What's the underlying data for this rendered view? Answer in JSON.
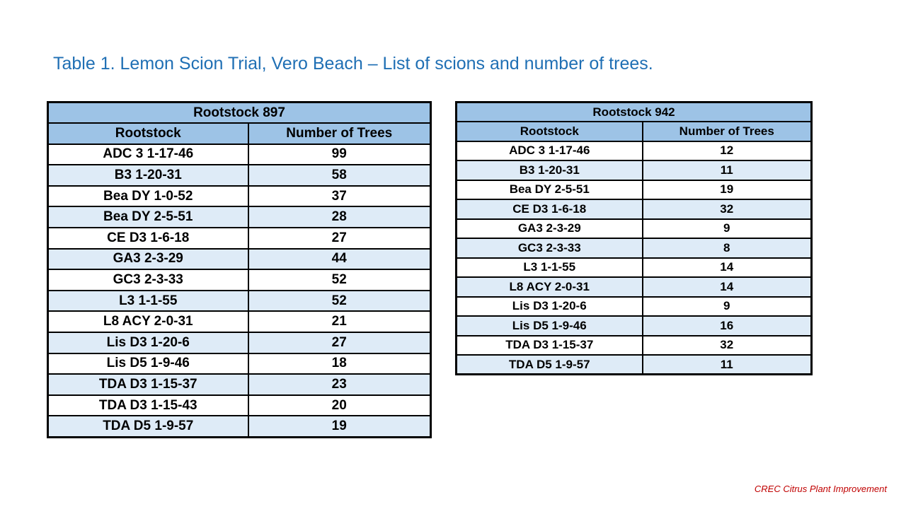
{
  "title": "Table 1. Lemon Scion Trial, Vero Beach – List of scions and number of trees.",
  "colors": {
    "header": "#9dc3e6",
    "alt_row": "#deebf7",
    "title": "#1f6fb4",
    "footer": "#c00000"
  },
  "tables": [
    {
      "caption": "Rootstock 897",
      "col_headers": [
        "Rootstock",
        "Number of Trees"
      ],
      "rows": [
        [
          "ADC 3 1-17-46",
          "99"
        ],
        [
          "B3 1-20-31",
          "58"
        ],
        [
          "Bea DY 1-0-52",
          "37"
        ],
        [
          "Bea DY 2-5-51",
          "28"
        ],
        [
          "CE D3 1-6-18",
          "27"
        ],
        [
          "GA3 2-3-29",
          "44"
        ],
        [
          "GC3 2-3-33",
          "52"
        ],
        [
          "L3 1-1-55",
          "52"
        ],
        [
          "L8 ACY 2-0-31",
          "21"
        ],
        [
          "Lis D3 1-20-6",
          "27"
        ],
        [
          "Lis D5 1-9-46",
          "18"
        ],
        [
          "TDA D3 1-15-37",
          "23"
        ],
        [
          "TDA D3 1-15-43",
          "20"
        ],
        [
          "TDA D5 1-9-57",
          "19"
        ]
      ]
    },
    {
      "caption": "Rootstock 942",
      "col_headers": [
        "Rootstock",
        "Number of Trees"
      ],
      "rows": [
        [
          "ADC 3 1-17-46",
          "12"
        ],
        [
          "B3 1-20-31",
          "11"
        ],
        [
          "Bea DY 2-5-51",
          "19"
        ],
        [
          "CE D3 1-6-18",
          "32"
        ],
        [
          "GA3 2-3-29",
          "9"
        ],
        [
          "GC3 2-3-33",
          "8"
        ],
        [
          "L3 1-1-55",
          "14"
        ],
        [
          "L8 ACY 2-0-31",
          "14"
        ],
        [
          "Lis D3 1-20-6",
          "9"
        ],
        [
          "Lis D5 1-9-46",
          "16"
        ],
        [
          "TDA D3 1-15-37",
          "32"
        ],
        [
          "TDA D5 1-9-57",
          "11"
        ]
      ]
    }
  ],
  "footer": "CREC Citrus Plant Improvement"
}
